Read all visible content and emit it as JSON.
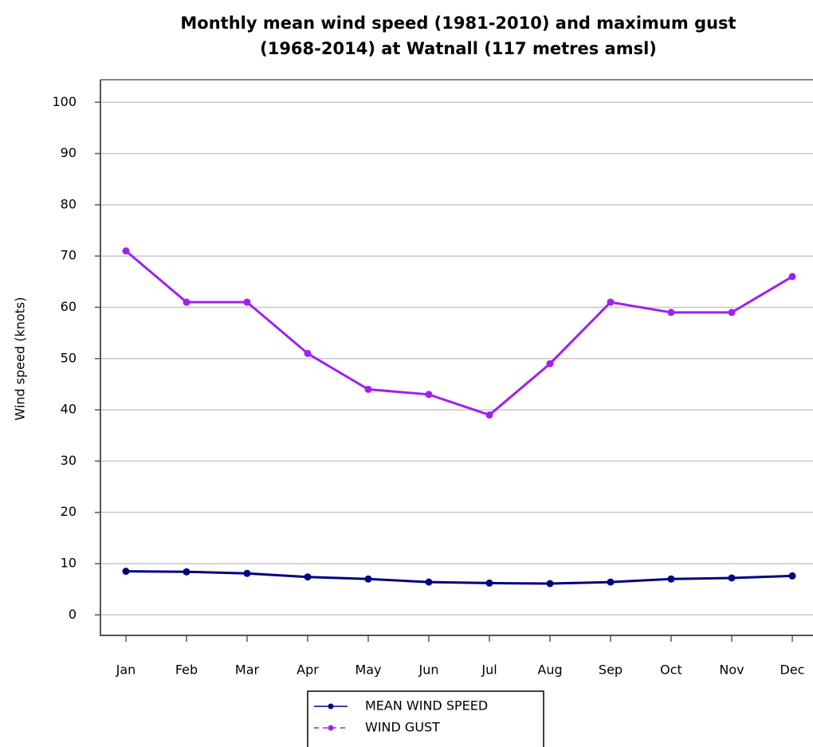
{
  "chart_data": {
    "type": "line",
    "title": [
      "Monthly mean wind speed (1981-2010) and maximum gust",
      "(1968-2014) at Watnall (117 metres amsl)"
    ],
    "y_label": "Wind speed (knots)",
    "categories": [
      "Jan",
      "Feb",
      "Mar",
      "Apr",
      "May",
      "Jun",
      "Jul",
      "Aug",
      "Sep",
      "Oct",
      "Nov",
      "Dec"
    ],
    "series": [
      {
        "name": "MEAN WIND SPEED",
        "color": "#000080",
        "values": [
          8.5,
          8.4,
          8.1,
          7.4,
          7.0,
          6.4,
          6.2,
          6.1,
          6.4,
          7.0,
          7.2,
          7.6
        ]
      },
      {
        "name": "WIND GUST",
        "color": "#a020f0",
        "values": [
          71,
          61,
          61,
          51,
          44,
          43,
          39,
          49,
          61,
          59,
          59,
          66
        ]
      }
    ],
    "ylim": [
      -4,
      104.4
    ],
    "yticks": [
      0,
      10,
      20,
      30,
      40,
      50,
      60,
      70,
      80,
      90,
      100
    ],
    "grid": true
  }
}
